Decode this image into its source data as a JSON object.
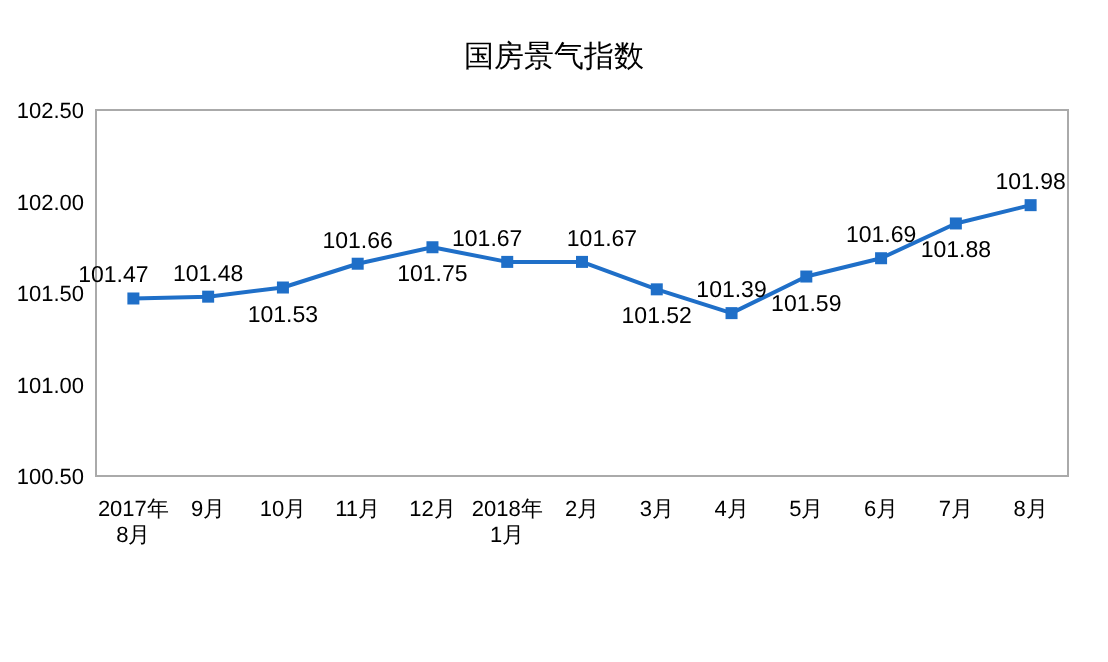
{
  "chart_data": {
    "type": "line",
    "title": "国房景气指数",
    "categories": [
      "2017年\n8月",
      "9月",
      "10月",
      "11月",
      "12月",
      "2018年\n1月",
      "2月",
      "3月",
      "4月",
      "5月",
      "6月",
      "7月",
      "8月"
    ],
    "series": [
      {
        "color": "#1f6fc8",
        "values": [
          101.47,
          101.48,
          101.53,
          101.66,
          101.75,
          101.67,
          101.67,
          101.52,
          101.39,
          101.59,
          101.69,
          101.88,
          101.98
        ]
      }
    ],
    "ylim": [
      100.5,
      102.5
    ],
    "yticks": [
      {
        "value": 100.5,
        "label": "100.50"
      },
      {
        "value": 101,
        "label": "101.00"
      },
      {
        "value": 101.5,
        "label": "101.50"
      },
      {
        "value": 102,
        "label": "102.00"
      },
      {
        "value": 102.5,
        "label": "102.50"
      }
    ],
    "marker": "square",
    "line_style": "solid",
    "grid": false,
    "data_labels": true
  }
}
